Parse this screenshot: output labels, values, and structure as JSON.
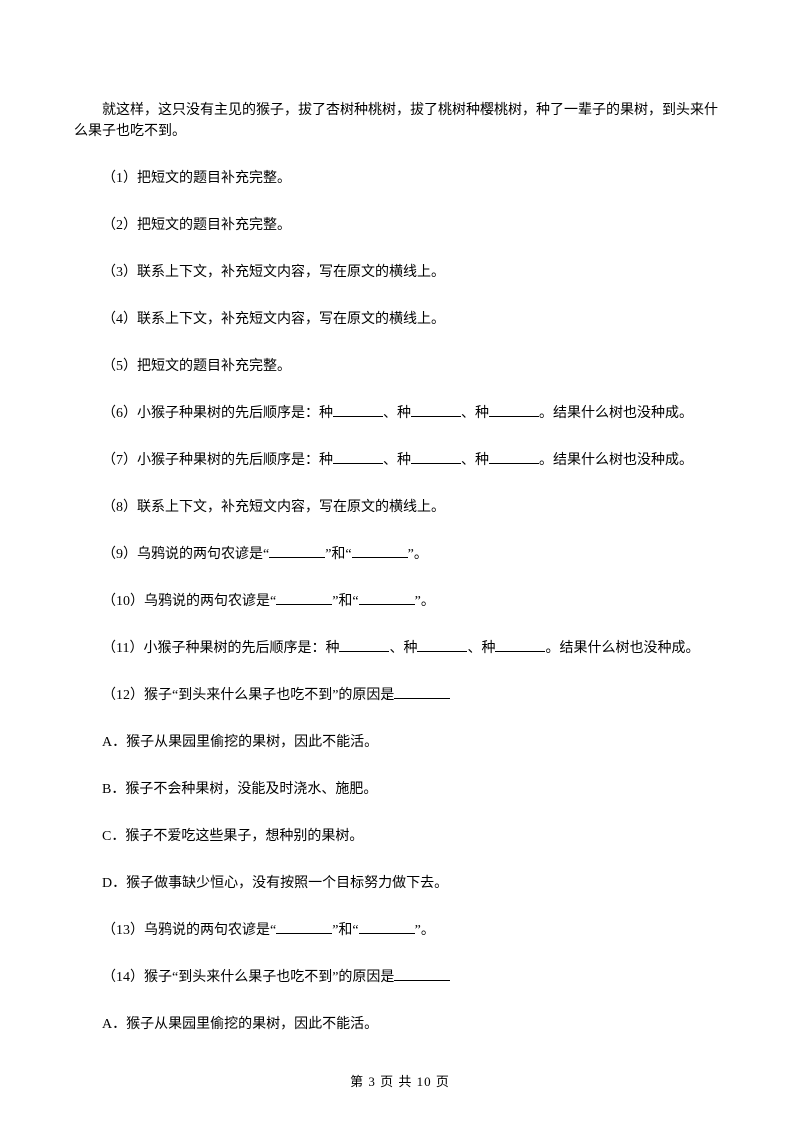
{
  "intro": "就这样，这只没有主见的猴子，拔了杏树种桃树，拔了桃树种樱桃树，种了一辈子的果树，到头来什么果子也吃不到。",
  "q1": "（1）把短文的题目补充完整。",
  "q2": "（2）把短文的题目补充完整。",
  "q3": "（3）联系上下文，补充短文内容，写在原文的横线上。",
  "q4": "（4）联系上下文，补充短文内容，写在原文的横线上。",
  "q5": "（5）把短文的题目补充完整。",
  "q6a": "（6）小猴子种果树的先后顺序是：种",
  "q6b": "、种",
  "q6c": "、种",
  "q6d": "。结果什么树也没种成。",
  "q7a": "（7）小猴子种果树的先后顺序是：种",
  "q7b": "、种",
  "q7c": "、种",
  "q7d": "。结果什么树也没种成。",
  "q8": "（8）联系上下文，补充短文内容，写在原文的横线上。",
  "q9a": "（9）乌鸦说的两句农谚是“",
  "q9b": "”和“",
  "q9c": "”。",
  "q10a": "（10）乌鸦说的两句农谚是“",
  "q10b": "”和“",
  "q10c": "”。",
  "q11a": "（11）小猴子种果树的先后顺序是：种",
  "q11b": "、种",
  "q11c": "、种",
  "q11d": "。结果什么树也没种成。",
  "q12a": "（12）猴子“到头来什么果子也吃不到”的原因是",
  "optA": "A．猴子从果园里偷挖的果树，因此不能活。",
  "optB": "B．猴子不会种果树，没能及时浇水、施肥。",
  "optC": "C．猴子不爱吃这些果子，想种别的果树。",
  "optD": "D．猴子做事缺少恒心，没有按照一个目标努力做下去。",
  "q13a": "（13）乌鸦说的两句农谚是“",
  "q13b": "”和“",
  "q13c": "”。",
  "q14a": "（14）猴子“到头来什么果子也吃不到”的原因是",
  "optA2": "A．猴子从果园里偷挖的果树，因此不能活。",
  "footer": "第 3 页 共 10 页"
}
